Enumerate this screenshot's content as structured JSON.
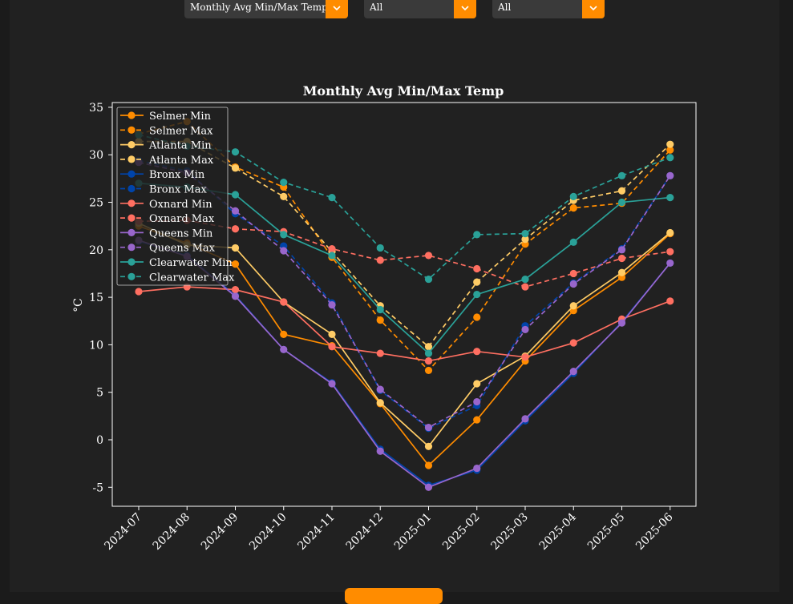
{
  "filters": {
    "metric": {
      "selected": "Monthly Avg Min/Max Temp"
    },
    "location": {
      "selected": "All"
    },
    "period": {
      "selected": "All"
    }
  },
  "colors": {
    "accent": "#ff8c00",
    "background": "#212121"
  },
  "chart_data": {
    "type": "line",
    "title": "Monthly Avg Min/Max Temp",
    "xlabel": "",
    "ylabel": "°C",
    "ylim": [
      -7,
      35.5
    ],
    "yticks": [
      -5,
      0,
      5,
      10,
      15,
      20,
      25,
      30,
      35
    ],
    "legend": "top-left",
    "grid": false,
    "categories": [
      "2024-07",
      "2024-08",
      "2024-09",
      "2024-10",
      "2024-11",
      "2024-12",
      "2025-01",
      "2025-02",
      "2025-03",
      "2025-04",
      "2025-05",
      "2025-06"
    ],
    "series": [
      {
        "name": "Selmer Min",
        "color": "#ff8c00",
        "dash": false,
        "values": [
          22.5,
          20.7,
          18.5,
          11.1,
          9.9,
          3.8,
          -2.7,
          2.1,
          8.3,
          13.6,
          17.1,
          21.7
        ]
      },
      {
        "name": "Selmer Max",
        "color": "#ff8c00",
        "dash": true,
        "values": [
          32.2,
          33.5,
          28.7,
          26.6,
          19.2,
          12.6,
          7.3,
          12.9,
          20.6,
          24.4,
          24.9,
          30.5
        ]
      },
      {
        "name": "Atlanta Min",
        "color": "#ffcc66",
        "dash": false,
        "values": [
          22.8,
          20.5,
          20.2,
          14.5,
          11.1,
          3.9,
          -0.7,
          5.9,
          8.8,
          14.1,
          17.6,
          21.8
        ]
      },
      {
        "name": "Atlanta Max",
        "color": "#ffcc66",
        "dash": true,
        "values": [
          31.4,
          31.4,
          28.6,
          25.6,
          19.8,
          14.1,
          9.8,
          16.6,
          21.1,
          25.2,
          26.2,
          31.1
        ]
      },
      {
        "name": "Bronx Min",
        "color": "#0044aa",
        "dash": false,
        "values": [
          20.9,
          19.4,
          15.2,
          9.5,
          6.0,
          -1.0,
          -4.8,
          -3.2,
          2.0,
          7.0,
          12.4,
          18.6
        ]
      },
      {
        "name": "Bronx Max",
        "color": "#0044aa",
        "dash": true,
        "values": [
          29.4,
          28.3,
          23.8,
          20.4,
          14.4,
          5.2,
          1.2,
          3.6,
          12.0,
          16.5,
          20.1,
          27.8
        ]
      },
      {
        "name": "Oxnard Min",
        "color": "#ff6f61",
        "dash": false,
        "values": [
          15.6,
          16.1,
          15.8,
          14.5,
          9.8,
          9.1,
          8.3,
          9.3,
          8.7,
          10.2,
          12.7,
          14.6
        ]
      },
      {
        "name": "Oxnard Max",
        "color": "#ff6f61",
        "dash": true,
        "values": [
          23.0,
          23.1,
          22.2,
          21.9,
          20.1,
          18.9,
          19.4,
          18.0,
          16.1,
          17.5,
          19.1,
          19.8
        ]
      },
      {
        "name": "Queens Min",
        "color": "#9966cc",
        "dash": false,
        "values": [
          21.0,
          19.3,
          15.1,
          9.5,
          5.9,
          -1.2,
          -5.0,
          -3.0,
          2.2,
          7.2,
          12.3,
          18.6
        ]
      },
      {
        "name": "Queens Max",
        "color": "#9966cc",
        "dash": true,
        "values": [
          29.2,
          28.1,
          24.1,
          19.9,
          14.2,
          5.3,
          1.3,
          4.0,
          11.6,
          16.4,
          20.0,
          27.8
        ]
      },
      {
        "name": "Clearwater Min",
        "color": "#2aa198",
        "dash": false,
        "values": [
          27.0,
          26.6,
          25.8,
          21.6,
          19.4,
          13.7,
          9.1,
          15.3,
          16.9,
          20.8,
          25.0,
          25.5
        ]
      },
      {
        "name": "Clearwater Max",
        "color": "#2aa198",
        "dash": true,
        "values": [
          32.1,
          30.9,
          30.3,
          27.1,
          25.5,
          20.2,
          16.9,
          21.6,
          21.7,
          25.6,
          27.8,
          29.7
        ]
      }
    ]
  }
}
